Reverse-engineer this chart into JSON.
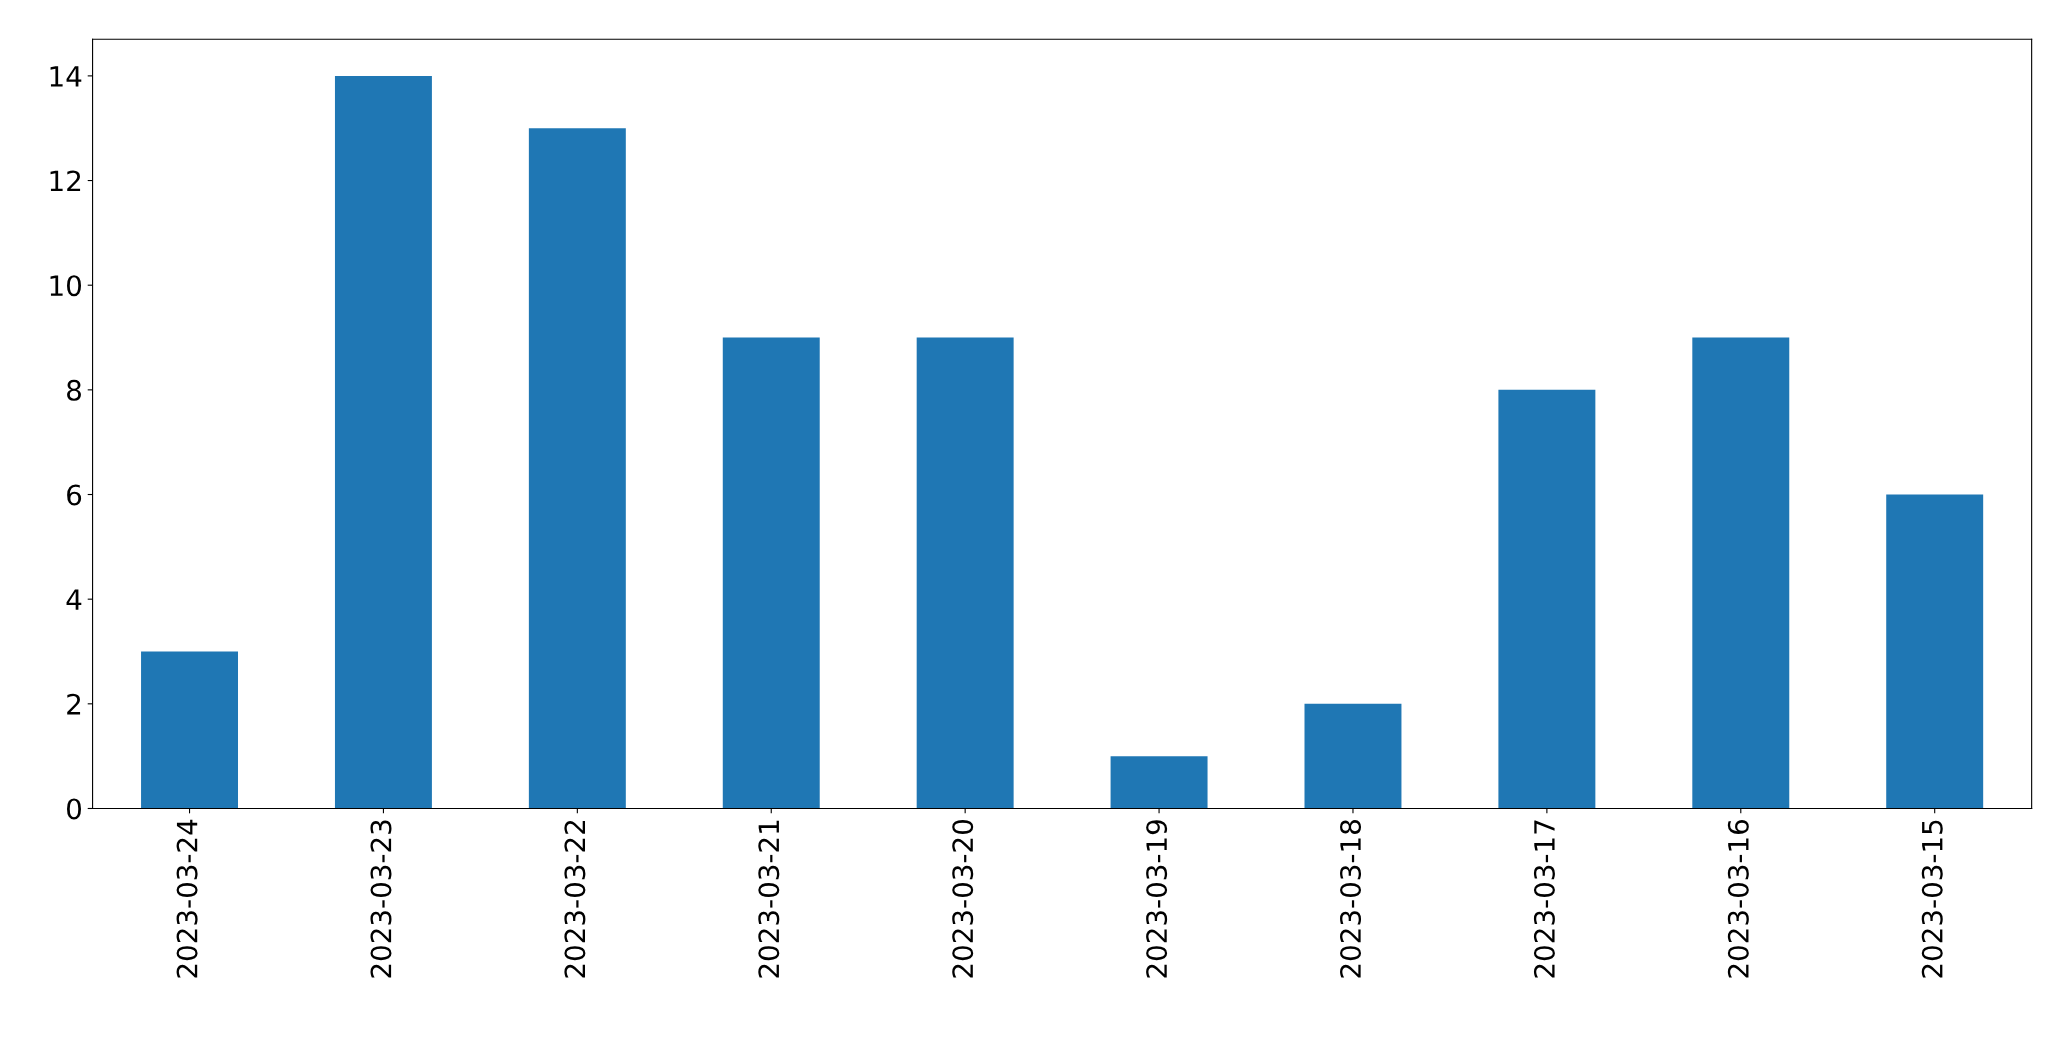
{
  "chart_data": {
    "type": "bar",
    "categories": [
      "2023-03-24",
      "2023-03-23",
      "2023-03-22",
      "2023-03-21",
      "2023-03-20",
      "2023-03-19",
      "2023-03-18",
      "2023-03-17",
      "2023-03-16",
      "2023-03-15"
    ],
    "values": [
      3,
      14,
      13,
      9,
      9,
      1,
      2,
      8,
      9,
      6
    ],
    "color": "#1f77b4",
    "ylim": [
      0,
      14.7
    ],
    "yticks": [
      0,
      2,
      4,
      6,
      8,
      10,
      12,
      14
    ],
    "grid": false,
    "legend": false
  }
}
